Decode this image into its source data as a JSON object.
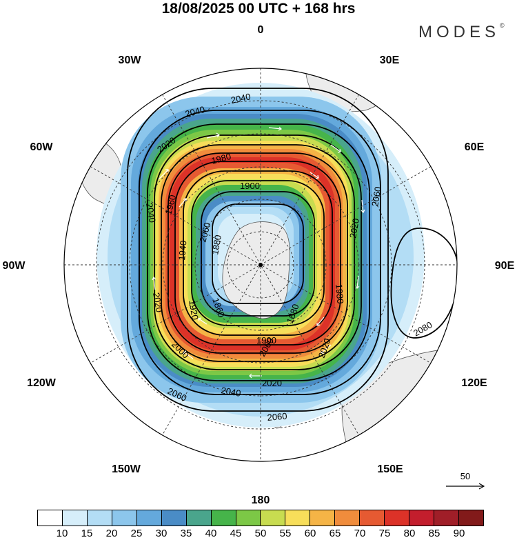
{
  "title": "18/08/2025  00 UTC  + 168 hrs",
  "brand": "MODES",
  "brand_mark": "©",
  "longitude_labels": [
    {
      "lon": 0,
      "text": "0"
    },
    {
      "lon": 30,
      "text": "30E"
    },
    {
      "lon": 60,
      "text": "60E"
    },
    {
      "lon": 90,
      "text": "90E"
    },
    {
      "lon": 120,
      "text": "120E"
    },
    {
      "lon": 150,
      "text": "150E"
    },
    {
      "lon": 180,
      "text": "180"
    },
    {
      "lon": -150,
      "text": "150W"
    },
    {
      "lon": -120,
      "text": "120W"
    },
    {
      "lon": -90,
      "text": "90W"
    },
    {
      "lon": -60,
      "text": "60W"
    },
    {
      "lon": -30,
      "text": "30W"
    }
  ],
  "contour_labels": [
    "1860",
    "1880",
    "1900",
    "1920",
    "1940",
    "1960",
    "1980",
    "2000",
    "2020",
    "2040",
    "2060",
    "2080"
  ],
  "reference_vector": {
    "label": "50"
  },
  "colorbar": {
    "labels": [
      "10",
      "15",
      "20",
      "25",
      "30",
      "35",
      "40",
      "45",
      "50",
      "55",
      "60",
      "65",
      "70",
      "75",
      "80",
      "85",
      "90"
    ],
    "colors": [
      "#ffffff",
      "#d6eefa",
      "#b3ddf5",
      "#8cc6ec",
      "#64a9dc",
      "#4a8cc6",
      "#4aa58c",
      "#46b44a",
      "#7cc846",
      "#c8dc50",
      "#f7de5a",
      "#f5b446",
      "#f08c3c",
      "#e65a32",
      "#dc3228",
      "#c31e2d",
      "#a01e28",
      "#821a1a"
    ]
  },
  "colors": {
    "land": "#ececec",
    "coast": "#555555",
    "contour": "#000000",
    "wind_arrow": "#ffffff"
  }
}
